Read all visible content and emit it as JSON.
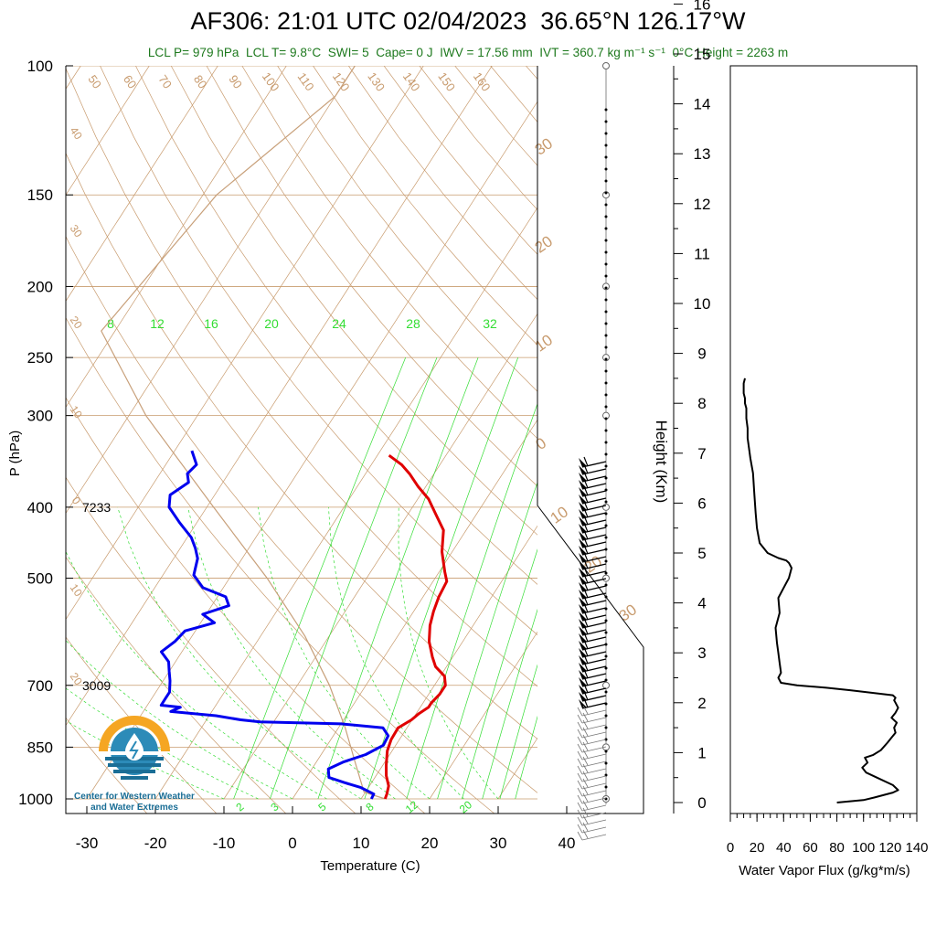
{
  "title": "AF306: 21:01 UTC 02/04/2023  36.65°N 126.17°W",
  "subtitle": "LCL P= 979 hPa  LCL T= 9.8°C  SWI= 5  Cape= 0 J  IWV = 17.56 mm  IVT = 360.7 kg m⁻¹ s⁻¹  0°C Height = 2263 m",
  "colors": {
    "temperature": "#e00000",
    "dewpoint": "#0000ee",
    "isotherm": "#c89b6e",
    "mixing_ratio": "#33dd33",
    "parcel": "#c8a07a",
    "subtitle": "#1f7a1f",
    "logo": "#1a6e96"
  },
  "logo": {
    "line1": "Center for Western Weather",
    "line2": "and Water Extremes"
  },
  "chart_data": [
    {
      "type": "line",
      "name": "skew-T",
      "xlabel": "Temperature (C)",
      "ylabel": "P (hPa)",
      "x_ticks": [
        -30,
        -20,
        -10,
        0,
        10,
        20,
        30,
        40
      ],
      "y_ticks": [
        100,
        150,
        200,
        250,
        300,
        400,
        500,
        700,
        850,
        1000
      ],
      "y_log": true,
      "annotations": [
        {
          "label": "7233",
          "p": 400
        },
        {
          "label": "3009",
          "p": 700
        }
      ],
      "isotherm_labels": [
        "50",
        "60",
        "70",
        "80",
        "90",
        "100",
        "110",
        "120",
        "130",
        "140",
        "150",
        "160",
        "40",
        "30",
        "20",
        "10",
        "0",
        "10",
        "20",
        "30",
        "20",
        "10",
        "0",
        "10",
        "30"
      ],
      "mixing_ratio_labels_top": [
        "8",
        "12",
        "16",
        "20",
        "24",
        "28",
        "32"
      ],
      "mixing_ratio_labels_bottom": [
        "2",
        "3",
        "5",
        "8",
        "12",
        "20"
      ],
      "temperature": [
        [
          1000,
          13.5
        ],
        [
          985,
          13.3
        ],
        [
          960,
          12.8
        ],
        [
          930,
          11.5
        ],
        [
          900,
          10.5
        ],
        [
          860,
          9.3
        ],
        [
          830,
          8.8
        ],
        [
          800,
          8.7
        ],
        [
          780,
          9.9
        ],
        [
          765,
          10.4
        ],
        [
          750,
          11.2
        ],
        [
          740,
          11.2
        ],
        [
          720,
          11.6
        ],
        [
          700,
          11.6
        ],
        [
          680,
          10.6
        ],
        [
          660,
          8.4
        ],
        [
          640,
          7.0
        ],
        [
          610,
          5.1
        ],
        [
          580,
          3.7
        ],
        [
          555,
          2.9
        ],
        [
          530,
          2.3
        ],
        [
          505,
          2.0
        ],
        [
          490,
          0.8
        ],
        [
          460,
          -1.5
        ],
        [
          430,
          -3.3
        ],
        [
          410,
          -5.8
        ],
        [
          390,
          -8.4
        ],
        [
          375,
          -11.1
        ],
        [
          360,
          -13.6
        ],
        [
          350,
          -15.6
        ],
        [
          340,
          -18.3
        ]
      ],
      "dewpoint": [
        [
          1000,
          11.5
        ],
        [
          985,
          11.4
        ],
        [
          965,
          8.9
        ],
        [
          950,
          6.0
        ],
        [
          935,
          3.3
        ],
        [
          910,
          2.4
        ],
        [
          890,
          4.0
        ],
        [
          870,
          6.5
        ],
        [
          845,
          8.2
        ],
        [
          820,
          8.0
        ],
        [
          800,
          6.5
        ],
        [
          790,
          0.0
        ],
        [
          785,
          -12.0
        ],
        [
          780,
          -15.0
        ],
        [
          770,
          -19.0
        ],
        [
          760,
          -26.0
        ],
        [
          750,
          -25.0
        ],
        [
          745,
          -28.0
        ],
        [
          730,
          -28.0
        ],
        [
          715,
          -28.0
        ],
        [
          690,
          -29.0
        ],
        [
          670,
          -30.0
        ],
        [
          650,
          -31.0
        ],
        [
          630,
          -33.0
        ],
        [
          610,
          -32.0
        ],
        [
          590,
          -31.5
        ],
        [
          575,
          -28.0
        ],
        [
          560,
          -30.5
        ],
        [
          545,
          -27.5
        ],
        [
          530,
          -28.8
        ],
        [
          515,
          -33.0
        ],
        [
          495,
          -35.5
        ],
        [
          470,
          -36.5
        ],
        [
          455,
          -37.8
        ],
        [
          440,
          -39.4
        ],
        [
          420,
          -42.5
        ],
        [
          400,
          -45.5
        ],
        [
          385,
          -46.5
        ],
        [
          370,
          -45.0
        ],
        [
          360,
          -46.0
        ],
        [
          350,
          -45.5
        ],
        [
          335,
          -47.5
        ]
      ],
      "parcel": [
        [
          1000,
          13.5
        ],
        [
          979,
          9.8
        ],
        [
          900,
          6.1
        ],
        [
          800,
          1.0
        ],
        [
          700,
          -5.3
        ],
        [
          600,
          -13.5
        ],
        [
          500,
          -24.5
        ],
        [
          400,
          -39.0
        ],
        [
          300,
          -57.5
        ],
        [
          230,
          -72.0
        ],
        [
          150,
          -68.0
        ],
        [
          110,
          -60.0
        ],
        [
          100,
          -60.0
        ]
      ],
      "wind_barbs": "ticked barbs along right axis, 150 to 1000 hPa"
    },
    {
      "type": "line",
      "name": "water vapor flux",
      "xlabel": "Water Vapor Flux (g/kg*m/s)",
      "ylabel": "Height (Km)",
      "x_ticks": [
        0,
        20,
        40,
        60,
        80,
        100,
        120,
        140
      ],
      "y_ticks": [
        0,
        1,
        2,
        3,
        4,
        5,
        6,
        7,
        8,
        9,
        10,
        11,
        12,
        13,
        14,
        15,
        16
      ],
      "xlim": [
        0,
        140
      ],
      "ylim": [
        -0.2,
        16.3
      ],
      "x": [
        80,
        100,
        108,
        122,
        126,
        122,
        110,
        102,
        99,
        103,
        101,
        107,
        113,
        118,
        121,
        124,
        123,
        125,
        121,
        124,
        126,
        124,
        123,
        124,
        122,
        106,
        90,
        72,
        50,
        38,
        36,
        38,
        37,
        36,
        35,
        34,
        37,
        36,
        40,
        44,
        46,
        44,
        42,
        36,
        28,
        22,
        20,
        19,
        18,
        17,
        15,
        14,
        13,
        13,
        12,
        12,
        11,
        11,
        10,
        10,
        10,
        11
      ],
      "y": [
        0.0,
        0.05,
        0.1,
        0.2,
        0.25,
        0.35,
        0.5,
        0.6,
        0.7,
        0.8,
        0.9,
        0.95,
        1.05,
        1.2,
        1.3,
        1.4,
        1.5,
        1.6,
        1.7,
        1.8,
        1.9,
        2.0,
        2.05,
        2.1,
        2.15,
        2.2,
        2.25,
        2.3,
        2.35,
        2.4,
        2.5,
        2.6,
        2.8,
        3.0,
        3.2,
        3.5,
        3.8,
        4.1,
        4.3,
        4.5,
        4.7,
        4.8,
        4.85,
        4.9,
        5.0,
        5.2,
        5.5,
        5.8,
        6.2,
        6.6,
        6.9,
        7.1,
        7.3,
        7.5,
        7.7,
        7.9,
        8.0,
        8.1,
        8.2,
        8.3,
        8.4,
        8.5
      ]
    }
  ]
}
